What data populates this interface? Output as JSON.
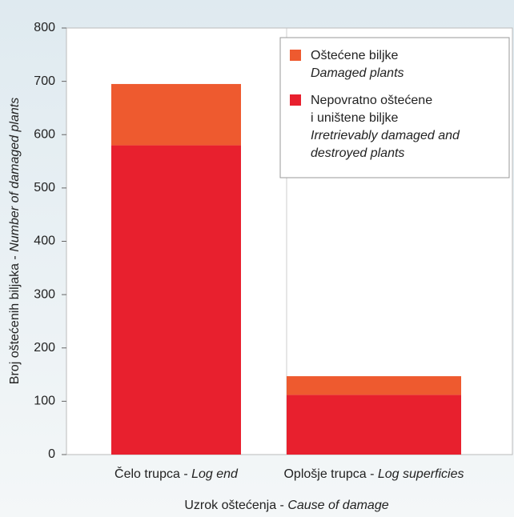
{
  "chart_data": {
    "type": "stacked_bar",
    "categories": [
      "Čelo trupca - Log end",
      "Oplošje trupca - Log superficies"
    ],
    "series": [
      {
        "name": "Nepovratno oštećene\ni uništene biljke\nIrretrievably damaged and\ndestroyed plants",
        "color": "#e8202e",
        "values": [
          580,
          112
        ]
      },
      {
        "name": "Oštećene biljke\nDamaged plants",
        "color": "#ee5a2f",
        "values": [
          115,
          35
        ]
      }
    ],
    "xlabel": "Uzrok oštećenja - Cause of damage",
    "ylabel": "Broj oštećenih biljaka - Number of damaged plants",
    "ylim": [
      0,
      800
    ],
    "yticks": [
      0,
      100,
      200,
      300,
      400,
      500,
      600,
      700,
      800
    ],
    "legend": "upper right"
  }
}
